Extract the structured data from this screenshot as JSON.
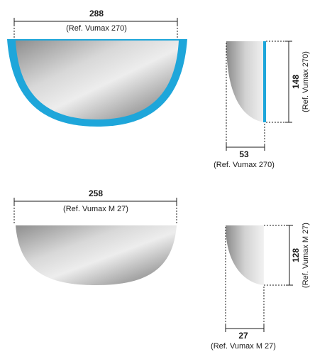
{
  "colors": {
    "accent": "#1ea6da",
    "line": "#1a1a1a"
  },
  "products": [
    {
      "name": "Vumax 270",
      "front": {
        "width_value": "288",
        "width_ref": "(Ref. Vumax 270)"
      },
      "side": {
        "height_value": "148",
        "height_ref": "(Ref. Vumax 270)",
        "depth_value": "53",
        "depth_ref": "(Ref. Vumax 270)"
      }
    },
    {
      "name": "Vumax M 27",
      "front": {
        "width_value": "258",
        "width_ref": "(Ref. Vumax M 27)"
      },
      "side": {
        "height_value": "128",
        "height_ref": "(Ref. Vumax M 27)",
        "depth_value": "27",
        "depth_ref": "(Ref. Vumax M 27)"
      }
    }
  ]
}
